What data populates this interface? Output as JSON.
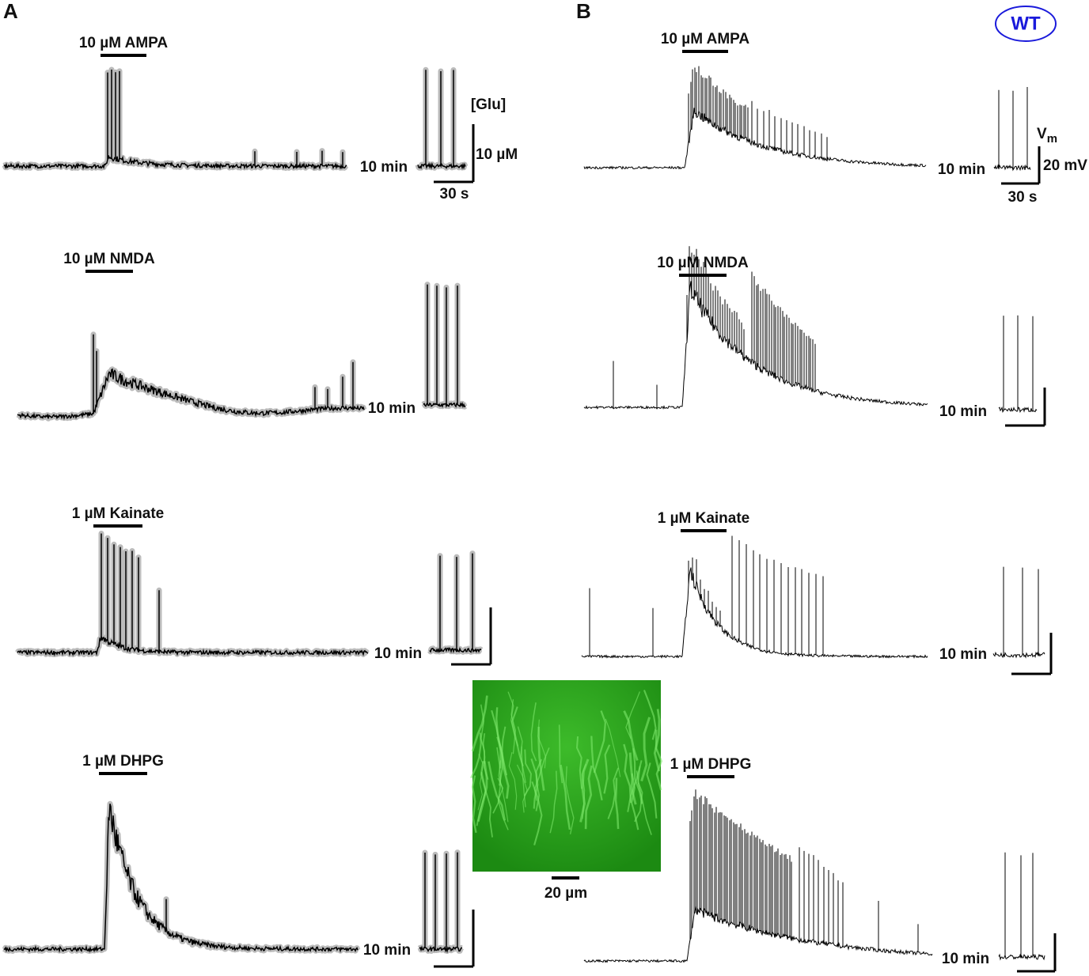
{
  "panels": [
    {
      "label": "A",
      "scale": {
        "measure": "[Glu]",
        "amplitude": "10 µM",
        "time": "30 s"
      },
      "rows": [
        {
          "drug": "10 µM AMPA",
          "duration": "10 min"
        },
        {
          "drug": "10 µM NMDA",
          "duration": "10 min"
        },
        {
          "drug": "1 µM Kainate",
          "duration": "10 min"
        },
        {
          "drug": "1 µM DHPG",
          "duration": "10 min"
        }
      ]
    },
    {
      "label": "B",
      "badge": "WT",
      "scale": {
        "measure": "V",
        "subscript": "m",
        "amplitude": "20 mV",
        "time": "30 s"
      },
      "rows": [
        {
          "drug": "10 µM AMPA",
          "duration": "10 min"
        },
        {
          "drug": "10 µM NMDA",
          "duration": "10 min"
        },
        {
          "drug": "1 µM Kainate",
          "duration": "10 min"
        },
        {
          "drug": "1 µM DHPG",
          "duration": "10 min"
        }
      ]
    }
  ],
  "image": {
    "scale": "20 µm"
  }
}
